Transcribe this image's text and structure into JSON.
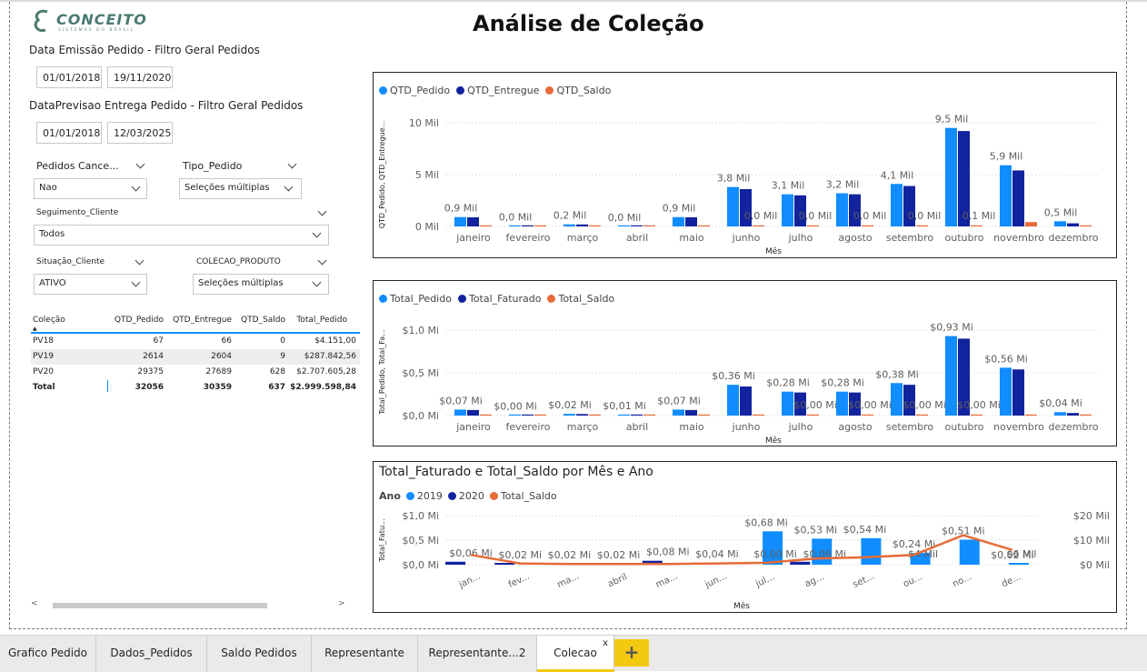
{
  "page_title": "Análise de Coleção",
  "logo": {
    "name": "CONCEITO",
    "sub": "SISTEMAS DO BRASIL"
  },
  "slicers": {
    "emissao": {
      "label": "Data Emissão Pedido - Filtro Geral Pedidos",
      "start": "01/01/2018",
      "end": "19/11/2020"
    },
    "previsao": {
      "label": "DataPrevisao Entrega Pedido - Filtro Geral Pedidos",
      "start": "01/01/2018",
      "end": "12/03/2025"
    },
    "pedidos_cancelados": {
      "label": "Pedidos Cance...",
      "value": "Nao"
    },
    "tipo_pedido": {
      "label": "Tipo_Pedido",
      "value": "Seleções múltiplas"
    },
    "seguimento": {
      "label": "Seguimento_Cliente",
      "value": "Todos"
    },
    "situacao": {
      "label": "Situação_Cliente",
      "value": "ATIVO"
    },
    "colecao_produto": {
      "label": "COLECAO_PRODUTO",
      "value": "Seleções múltiplas"
    }
  },
  "table": {
    "headers": [
      "Coleção",
      "QTD_Pedido",
      "QTD_Entregue",
      "QTD_Saldo",
      "Total_Pedido"
    ],
    "rows": [
      [
        "PV18",
        "67",
        "66",
        "0",
        "$4.151,00"
      ],
      [
        "PV19",
        "2614",
        "2604",
        "9",
        "$287.842,56"
      ],
      [
        "PV20",
        "29375",
        "27689",
        "628",
        "$2.707.605,28"
      ]
    ],
    "total": [
      "Total",
      "32056",
      "30359",
      "637",
      "$2.999.598,84"
    ]
  },
  "colors": {
    "c1": "#118dff",
    "c2": "#12239e",
    "c3": "#e66c37"
  },
  "chart_data": [
    {
      "type": "bar",
      "legend": [
        "QTD_Pedido",
        "QTD_Entregue",
        "QTD_Saldo"
      ],
      "xlabel": "Mês",
      "ylabel": "QTD_Pedido, QTD_Entregue...",
      "yticks": [
        "10 Mil",
        "5 Mil",
        "0 Mil"
      ],
      "ylim": [
        0,
        10000
      ],
      "categories": [
        "janeiro",
        "fevereiro",
        "março",
        "abril",
        "maio",
        "junho",
        "julho",
        "agosto",
        "setembro",
        "outubro",
        "novembro",
        "dezembro"
      ],
      "series": [
        {
          "name": "QTD_Pedido",
          "values": [
            900,
            40,
            200,
            20,
            900,
            3800,
            3100,
            3200,
            4100,
            9500,
            5900,
            500
          ]
        },
        {
          "name": "QTD_Entregue",
          "values": [
            880,
            40,
            190,
            20,
            880,
            3600,
            3000,
            3100,
            3900,
            9200,
            5400,
            300
          ]
        },
        {
          "name": "QTD_Saldo",
          "values": [
            0,
            0,
            0,
            0,
            0,
            0,
            0,
            0,
            0,
            50,
            420,
            50
          ]
        }
      ],
      "labels_a": [
        "0,9 Mil",
        "0,0 Mil",
        "0,2 Mil",
        "0,0 Mil",
        "0,9 Mil",
        "3,8 Mil",
        "3,1 Mil",
        "3,2 Mil",
        "4,1 Mil",
        "9,5 Mil",
        "5,9 Mil",
        "0,5 Mil"
      ],
      "labels_c": [
        "",
        "",
        "",
        "",
        "",
        "0,0 Mil",
        "0,0 Mil",
        "0,0 Mil",
        "0,0 Mil",
        "0,1 Mil",
        "",
        ""
      ]
    },
    {
      "type": "bar",
      "legend": [
        "Total_Pedido",
        "Total_Faturado",
        "Total_Saldo"
      ],
      "xlabel": "Mês",
      "ylabel": "Total_Pedido, Total_Fa...",
      "yticks": [
        "$1,0 Mi",
        "$0,5 Mi",
        "$0,0 Mi"
      ],
      "ylim": [
        0,
        1.0
      ],
      "categories": [
        "janeiro",
        "fevereiro",
        "março",
        "abril",
        "maio",
        "junho",
        "julho",
        "agosto",
        "setembro",
        "outubro",
        "novembro",
        "dezembro"
      ],
      "series": [
        {
          "name": "Total_Pedido",
          "values": [
            0.07,
            0.004,
            0.02,
            0.01,
            0.07,
            0.36,
            0.28,
            0.28,
            0.38,
            0.93,
            0.56,
            0.04
          ]
        },
        {
          "name": "Total_Faturado",
          "values": [
            0.065,
            0.004,
            0.018,
            0.009,
            0.065,
            0.34,
            0.27,
            0.27,
            0.36,
            0.9,
            0.54,
            0.03
          ]
        },
        {
          "name": "Total_Saldo",
          "values": [
            0,
            0,
            0,
            0,
            0,
            0,
            0,
            0,
            0,
            0.004,
            0.004,
            0.004
          ]
        }
      ],
      "labels_a": [
        "$0,07 Mi",
        "$0,00 Mi",
        "$0,02 Mi",
        "$0,01 Mi",
        "$0,07 Mi",
        "$0,36 Mi",
        "$0,28 Mi",
        "$0,28 Mi",
        "$0,38 Mi",
        "$0,93 Mi",
        "$0,56 Mi",
        "$0,04 Mi"
      ],
      "labels_c": [
        "",
        "",
        "",
        "",
        "",
        "",
        "$0,00 Mi",
        "$0,00 Mi",
        "$0,00 Mi",
        "$0,00 Mi",
        "",
        ""
      ]
    },
    {
      "type": "bar",
      "title": "Total_Faturado e Total_Saldo por Mês e Ano",
      "legend_title": "Ano",
      "legend": [
        "2019",
        "2020",
        "Total_Saldo"
      ],
      "xlabel": "Mês",
      "ylabel": "Total_Fatu...",
      "yticks_left": [
        "$1,0 Mi",
        "$0,5 Mi",
        "$0,0 Mi"
      ],
      "yticks_right": [
        "$20 Mil",
        "$10 Mil",
        "$0 Mil"
      ],
      "ylim_left": [
        0,
        1.0
      ],
      "ylim_right": [
        0,
        20000
      ],
      "categories": [
        "jan...",
        "fev...",
        "ma...",
        "abril",
        "ma...",
        "jun...",
        "jul...",
        "ag...",
        "set...",
        "ou...",
        "no...",
        "de..."
      ],
      "series": [
        {
          "name": "2019",
          "values": [
            0.0,
            0.0,
            0.0,
            0.0,
            0.0,
            0.0,
            0.68,
            0.53,
            0.54,
            0.24,
            0.51,
            0.02
          ]
        },
        {
          "name": "2020",
          "values": [
            0.06,
            0.02,
            0.02,
            0.02,
            0.08,
            0.04,
            0.0,
            0.06,
            0.0,
            0.0,
            0.0,
            0.0
          ]
        },
        {
          "name": "Total_Saldo",
          "values": [
            4000,
            500,
            300,
            300,
            300,
            500,
            800,
            2500,
            3000,
            4000,
            12000,
            6000
          ]
        }
      ],
      "labels_bar": [
        "$0,06 Mi",
        "$0,02 Mi",
        "$0,02 Mi",
        "$0,02 Mi",
        "$0,08 Mi",
        "$0,04 Mi",
        "$0,68 Mi",
        "$0,53 Mi",
        "$0,54 Mi",
        "$0,24 Mi",
        "$0,51 Mi",
        "$0,02 Mi"
      ],
      "labels_extra": [
        "",
        "",
        "",
        "",
        "",
        "",
        "$0,00 Mi",
        "$0,06 Mi",
        "",
        "$4 Mil",
        "",
        "$6 Mil"
      ]
    }
  ],
  "scroll": {
    "left": "<",
    "right": ">"
  },
  "tabs": [
    "Grafico Pedido",
    "Dados_Pedidos",
    "Saldo Pedidos",
    "Representante",
    "Representante...2",
    "Colecao"
  ],
  "tab_close": "x",
  "add_tab": "+"
}
